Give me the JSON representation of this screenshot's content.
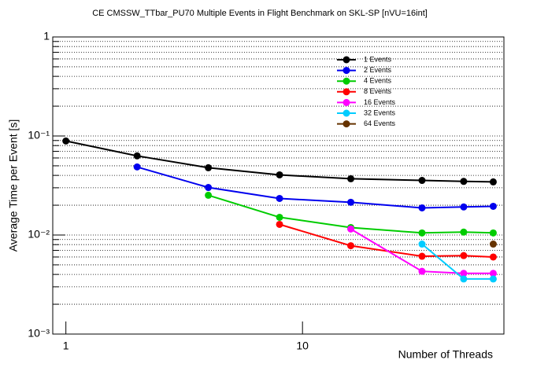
{
  "chart_data": {
    "type": "line",
    "title": "CE CMSSW_TTbar_PU70 Multiple Events in Flight Benchmark on SKL-SP [nVU=16int]",
    "x_label": "Number of Threads",
    "y_label": "Average Time per Event [s]",
    "x": [
      1,
      2,
      4,
      8,
      16,
      32,
      48,
      64
    ],
    "series": [
      {
        "name": "1 Events",
        "color": "#000000",
        "values": [
          0.089,
          0.063,
          0.0478,
          0.0405,
          0.037,
          0.0356,
          0.0348,
          0.0344
        ]
      },
      {
        "name": "2 Events",
        "color": "#0000ee",
        "values": [
          null,
          0.0487,
          0.0302,
          0.0234,
          0.0214,
          0.0188,
          0.0192,
          0.0195
        ]
      },
      {
        "name": "4 Events",
        "color": "#00cc00",
        "values": [
          null,
          null,
          0.0252,
          0.0151,
          0.0119,
          0.0105,
          0.0107,
          0.0105
        ]
      },
      {
        "name": "8 Events",
        "color": "#ff0000",
        "values": [
          null,
          null,
          null,
          0.0128,
          0.0078,
          0.0061,
          0.0062,
          0.006
        ]
      },
      {
        "name": "16 Events",
        "color": "#ff00ff",
        "values": [
          null,
          null,
          null,
          null,
          0.0115,
          0.0043,
          0.0041,
          0.0041
        ]
      },
      {
        "name": "32 Events",
        "color": "#00ccff",
        "values": [
          null,
          null,
          null,
          null,
          null,
          0.0081,
          0.0036,
          0.0036
        ]
      },
      {
        "name": "64 Events",
        "color": "#663300",
        "values": [
          null,
          null,
          null,
          null,
          null,
          null,
          null,
          0.0081
        ]
      }
    ],
    "xlog": true,
    "ylog": true,
    "xlim": [
      0.88,
      71
    ],
    "ylim": [
      0.001,
      1
    ],
    "xticks": [
      1,
      10
    ],
    "yticks": [
      {
        "value": 0.001,
        "label": "10⁻³"
      },
      {
        "value": 0.01,
        "label": "10⁻²"
      },
      {
        "value": 0.1,
        "label": "10⁻¹"
      },
      1
    ],
    "yminorticks": [
      0.002,
      0.003,
      0.004,
      0.005,
      0.006,
      0.007,
      0.008,
      0.009,
      0.02,
      0.03,
      0.04,
      0.05,
      0.06,
      0.07,
      0.08,
      0.09,
      0.2,
      0.3,
      0.4,
      0.5,
      0.6,
      0.7,
      0.8,
      0.9
    ],
    "grid": true,
    "legend": "upper right"
  }
}
